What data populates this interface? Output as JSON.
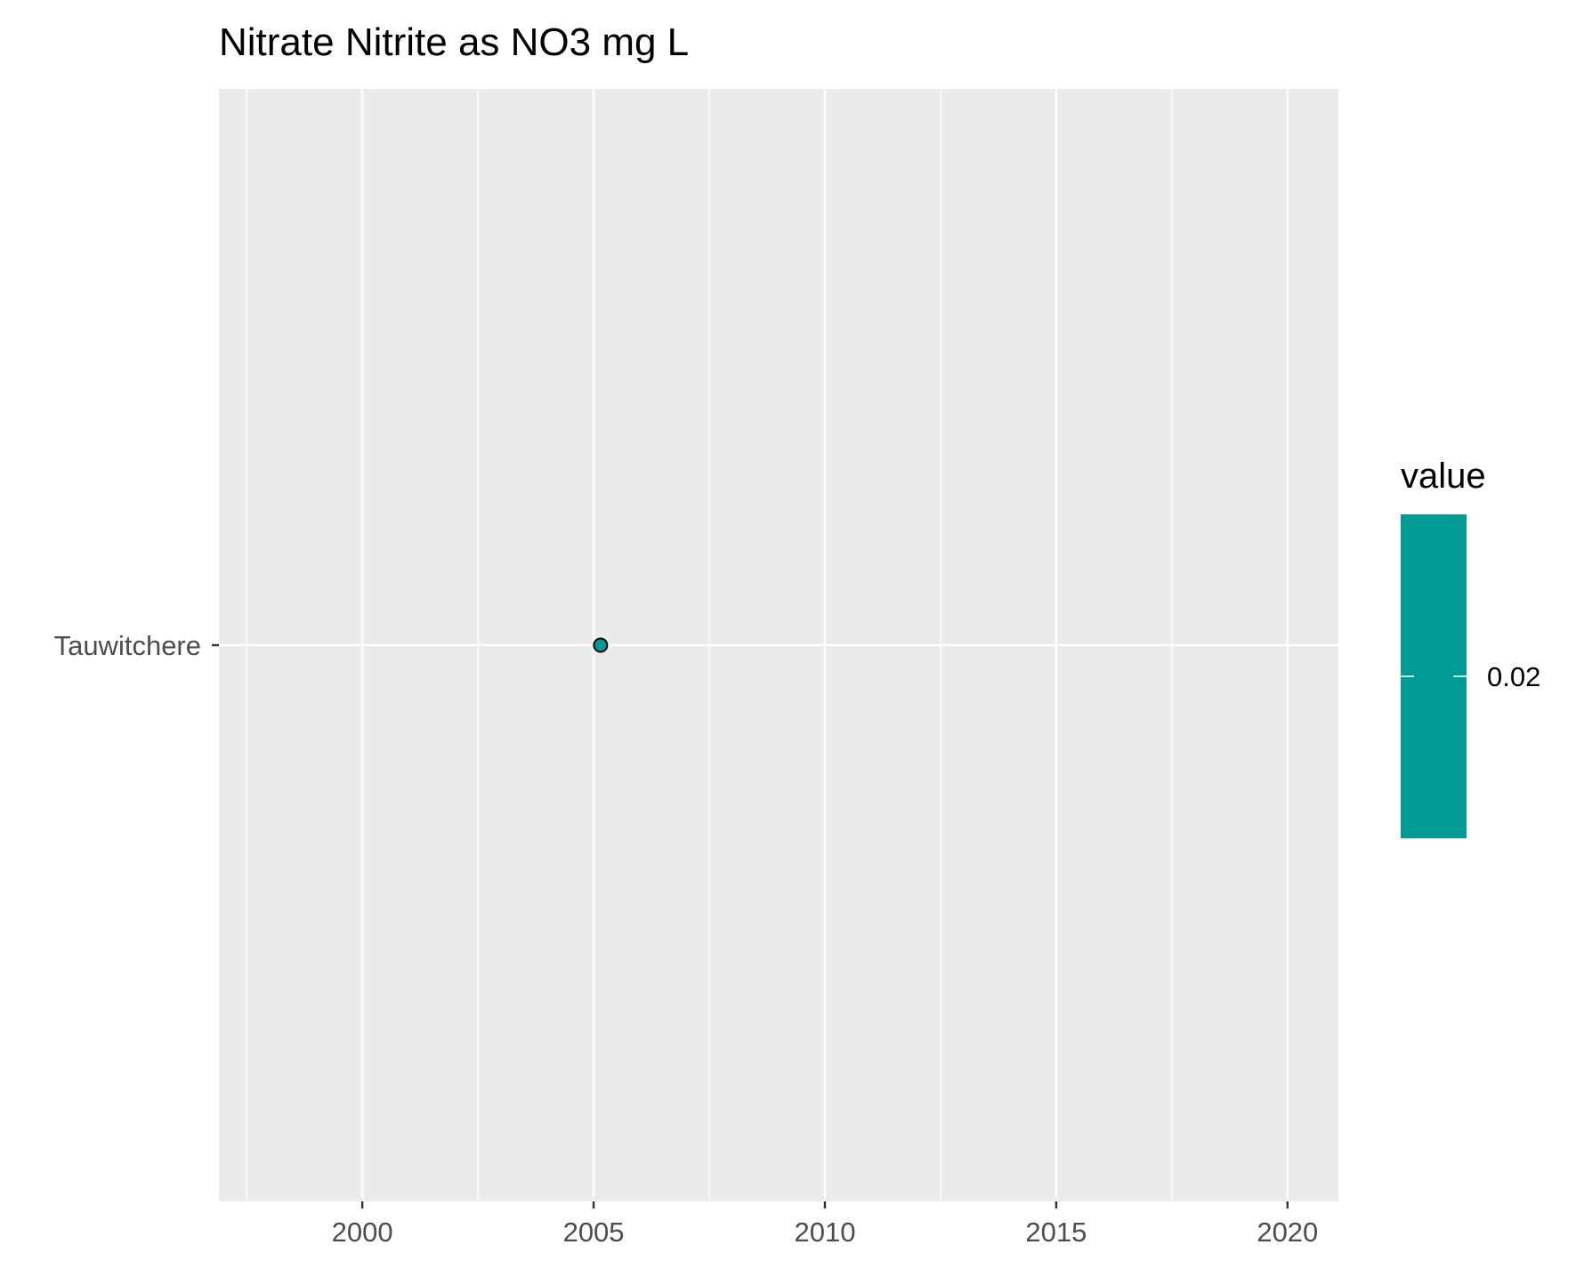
{
  "chart_data": {
    "type": "scatter",
    "title": "Nitrate  Nitrite as NO3 mg L",
    "xlabel": "",
    "ylabel": "",
    "x_ticks": [
      2000,
      2005,
      2010,
      2015,
      2020
    ],
    "x_ticks_labels": [
      "2000",
      "2005",
      "2010",
      "2015",
      "2020"
    ],
    "xlim": [
      1996.9,
      2021.1
    ],
    "y_categories": [
      "Tauwitchere"
    ],
    "points": [
      {
        "x": 2005.15,
        "y": "Tauwitchere",
        "value": 0.02
      }
    ],
    "grid": true,
    "legend": {
      "title": "value",
      "type": "colorbar",
      "placement": "right",
      "breaks": [
        0.02
      ],
      "break_labels": [
        "0.02"
      ],
      "color": "#009b94"
    },
    "colors": {
      "panel_background": "#ebebeb",
      "grid": "#ffffff",
      "point_fill": "#009b94",
      "point_stroke": "#000000"
    }
  }
}
